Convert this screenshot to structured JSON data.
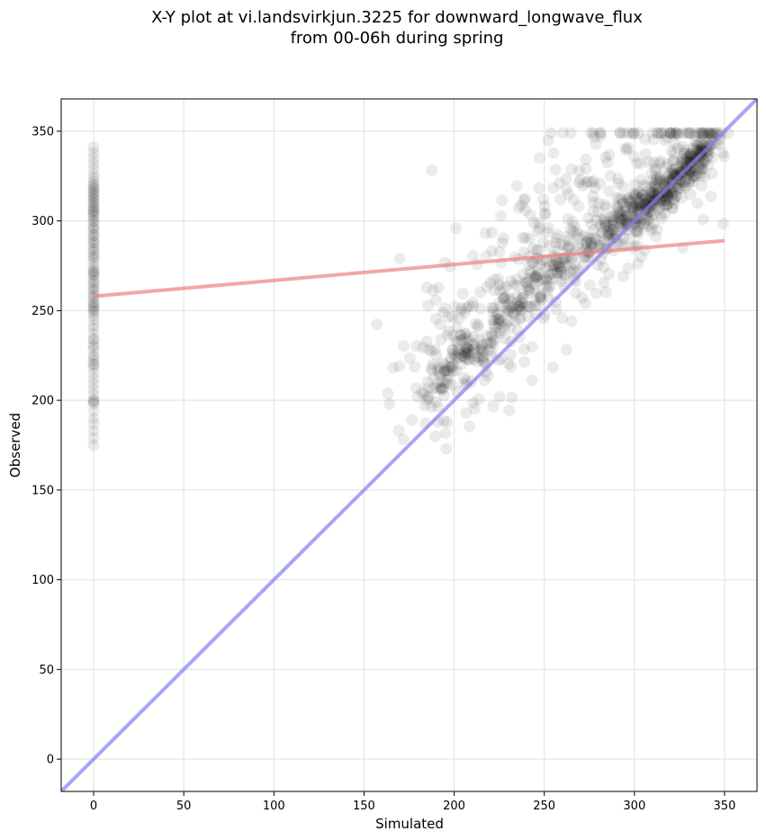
{
  "chart_data": {
    "type": "scatter",
    "title": "X-Y plot at vi.landsvirkjun.3225 for downward_longwave_flux",
    "subtitle": "from 00-06h during spring",
    "xlabel": "Simulated",
    "ylabel": "Observed",
    "xlim": [
      -18,
      368
    ],
    "ylim": [
      -18,
      368
    ],
    "x_ticks": [
      0,
      50,
      100,
      150,
      200,
      250,
      300,
      350
    ],
    "y_ticks": [
      0,
      50,
      100,
      150,
      200,
      250,
      300,
      350
    ],
    "x_tick_labels": [
      "0",
      "50",
      "100",
      "150",
      "200",
      "250",
      "300",
      "350"
    ],
    "y_tick_labels": [
      "0",
      "50",
      "100",
      "150",
      "200",
      "250",
      "300",
      "350"
    ],
    "grid": true,
    "point_color": "#000000",
    "point_alpha": 0.08,
    "zero_column": {
      "x": 0,
      "y_values": [
        175,
        179,
        183,
        187,
        190,
        194,
        198,
        200,
        203,
        206,
        209,
        212,
        215,
        218,
        220,
        222,
        225,
        228,
        231,
        234,
        237,
        240,
        242,
        245,
        247,
        249,
        251,
        253,
        255,
        257,
        259,
        261,
        263,
        265,
        267,
        269,
        271,
        272,
        274,
        276,
        278,
        280,
        282,
        284,
        286,
        288,
        290,
        292,
        294,
        296,
        298,
        300,
        302,
        303,
        305,
        306,
        308,
        310,
        312,
        314,
        316,
        318,
        320,
        322,
        324,
        326,
        329,
        332,
        335,
        338,
        341,
        270,
        272,
        300,
        304,
        306,
        308,
        250,
        252,
        254,
        258,
        262,
        266,
        280,
        284,
        288,
        292,
        296,
        310,
        312,
        314,
        316,
        318,
        320,
        224,
        220,
        200,
        199,
        230,
        234
      ]
    },
    "cloud": {
      "x_range": [
        147,
        352
      ],
      "y_range": [
        173,
        349
      ],
      "dense_ridge": [
        [
          185,
          200
        ],
        [
          200,
          218
        ],
        [
          215,
          232
        ],
        [
          230,
          248
        ],
        [
          245,
          262
        ],
        [
          260,
          275
        ],
        [
          275,
          288
        ],
        [
          290,
          298
        ],
        [
          300,
          308
        ],
        [
          315,
          318
        ],
        [
          330,
          332
        ],
        [
          345,
          345
        ]
      ]
    },
    "series": [
      {
        "name": "",
        "kind": "regression",
        "color": "#f08080",
        "x": [
          0,
          350
        ],
        "y": [
          258,
          289
        ]
      },
      {
        "name": "",
        "kind": "one-to-one",
        "color": "#8080f0",
        "x": [
          -18,
          368
        ],
        "y": [
          -18,
          368
        ]
      }
    ]
  }
}
